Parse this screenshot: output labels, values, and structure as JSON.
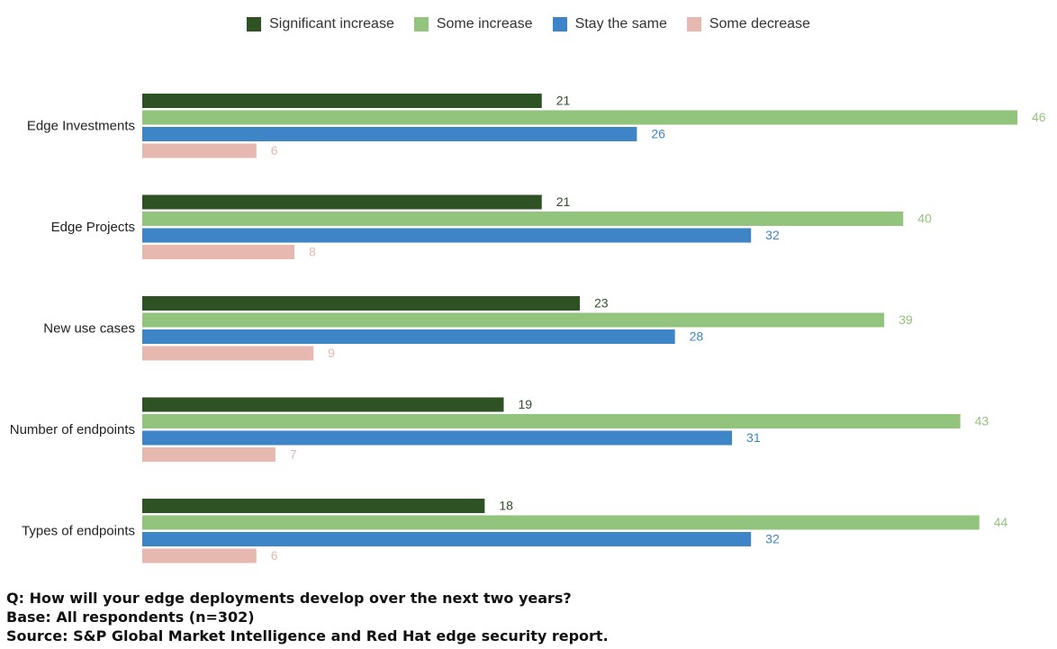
{
  "chart_data": {
    "type": "bar",
    "orientation": "horizontal",
    "categories": [
      "Edge Investments",
      "Edge Projects",
      "New use cases",
      "Number of endpoints",
      "Types of endpoints"
    ],
    "series": [
      {
        "name": "Significant increase",
        "color": "#2e5224",
        "values": [
          21,
          21,
          23,
          19,
          18
        ]
      },
      {
        "name": "Some increase",
        "color": "#93c47d",
        "values": [
          46,
          40,
          39,
          43,
          44
        ]
      },
      {
        "name": "Stay the same",
        "color": "#3d85c6",
        "values": [
          26,
          32,
          28,
          31,
          32
        ]
      },
      {
        "name": "Some decrease",
        "color": "#e6b8af",
        "values": [
          6,
          8,
          9,
          7,
          6
        ]
      }
    ],
    "xlim": [
      0,
      46
    ],
    "legend_position": "top-center"
  },
  "notes": {
    "question": "Q: How will your edge deployments develop over the next two years?",
    "base": "Base: All respondents (n=302)",
    "source": "Source: S&P Global Market Intelligence and Red Hat edge security report."
  }
}
